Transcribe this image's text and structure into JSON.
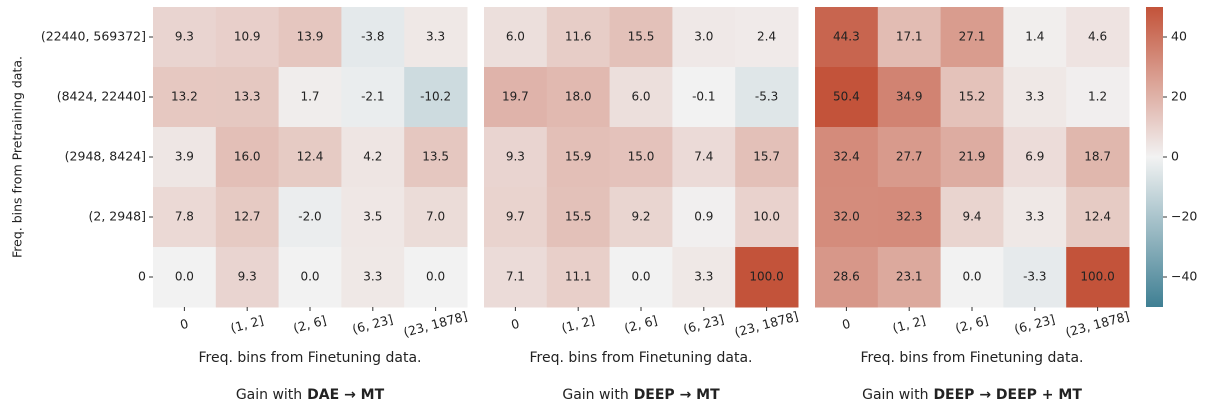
{
  "chart_data": [
    {
      "type": "heatmap",
      "ylabel": "Freq. bins from Pretraining data.",
      "xlabel": "Freq. bins from Finetuning data.",
      "caption": [
        "Gain with",
        "DAE → MT"
      ],
      "rows": [
        "(22440, 569372]",
        "(8424, 22440]",
        "(2948, 8424]",
        "(2, 2948]",
        "0"
      ],
      "columns": [
        "0",
        "(1, 2]",
        "(2, 6]",
        "(6, 23]",
        "(23, 1878]"
      ],
      "values": [
        [
          9.3,
          10.9,
          13.9,
          -3.8,
          3.3
        ],
        [
          13.2,
          13.3,
          1.7,
          -2.1,
          -10.2
        ],
        [
          3.9,
          16.0,
          12.4,
          4.2,
          13.5
        ],
        [
          7.8,
          12.7,
          -2.0,
          3.5,
          7.0
        ],
        [
          0.0,
          9.3,
          0.0,
          3.3,
          0.0
        ]
      ],
      "value_labels": [
        [
          "9.3",
          "10.9",
          "13.9",
          "-3.8",
          "3.3"
        ],
        [
          "13.2",
          "13.3",
          "1.7",
          "-2.1",
          "-10.2"
        ],
        [
          "3.9",
          "16.0",
          "12.4",
          "4.2",
          "13.5"
        ],
        [
          "7.8",
          "12.7",
          "-2.0",
          "3.5",
          "7.0"
        ],
        [
          "0.0",
          "9.3",
          "0.0",
          "3.3",
          "0.0"
        ]
      ]
    },
    {
      "type": "heatmap",
      "xlabel": "Freq. bins from Finetuning data.",
      "caption": [
        "Gain with",
        "DEEP → MT"
      ],
      "columns": [
        "0",
        "(1, 2]",
        "(2, 6]",
        "(6, 23]",
        "(23, 1878]"
      ],
      "values": [
        [
          6.0,
          11.6,
          15.5,
          3.0,
          2.4
        ],
        [
          19.7,
          18.0,
          6.0,
          -0.1,
          -5.3
        ],
        [
          9.3,
          15.9,
          15.0,
          7.4,
          15.7
        ],
        [
          9.7,
          15.5,
          9.2,
          0.9,
          10.0
        ],
        [
          7.1,
          11.1,
          0.0,
          3.3,
          100.0
        ]
      ],
      "value_labels": [
        [
          "6.0",
          "11.6",
          "15.5",
          "3.0",
          "2.4"
        ],
        [
          "19.7",
          "18.0",
          "6.0",
          "-0.1",
          "-5.3"
        ],
        [
          "9.3",
          "15.9",
          "15.0",
          "7.4",
          "15.7"
        ],
        [
          "9.7",
          "15.5",
          "9.2",
          "0.9",
          "10.0"
        ],
        [
          "7.1",
          "11.1",
          "0.0",
          "3.3",
          "100.0"
        ]
      ]
    },
    {
      "type": "heatmap",
      "xlabel": "Freq. bins from Finetuning data.",
      "caption": [
        "Gain with",
        "DEEP → DEEP + MT"
      ],
      "columns": [
        "0",
        "(1, 2]",
        "(2, 6]",
        "(6, 23]",
        "(23, 1878]"
      ],
      "values": [
        [
          44.3,
          17.1,
          27.1,
          1.4,
          4.6
        ],
        [
          50.4,
          34.9,
          15.2,
          3.3,
          1.2
        ],
        [
          32.4,
          27.7,
          21.9,
          6.9,
          18.7
        ],
        [
          32.0,
          32.3,
          9.4,
          3.3,
          12.4
        ],
        [
          28.6,
          23.1,
          0.0,
          -3.3,
          100.0
        ]
      ],
      "value_labels": [
        [
          "44.3",
          "17.1",
          "27.1",
          "1.4",
          "4.6"
        ],
        [
          "50.4",
          "34.9",
          "15.2",
          "3.3",
          "1.2"
        ],
        [
          "32.4",
          "27.7",
          "21.9",
          "6.9",
          "18.7"
        ],
        [
          "32.0",
          "32.3",
          "9.4",
          "3.3",
          "12.4"
        ],
        [
          "28.6",
          "23.1",
          "0.0",
          "-3.3",
          "100.0"
        ]
      ],
      "clim": [
        -50,
        50
      ],
      "cticks": [
        {
          "value": -40,
          "label": "−40"
        },
        {
          "value": -20,
          "label": "−20"
        },
        0,
        20,
        40
      ],
      "colormap": [
        "#3f7f93",
        "#f2f2f2",
        "#c3533a"
      ]
    }
  ]
}
